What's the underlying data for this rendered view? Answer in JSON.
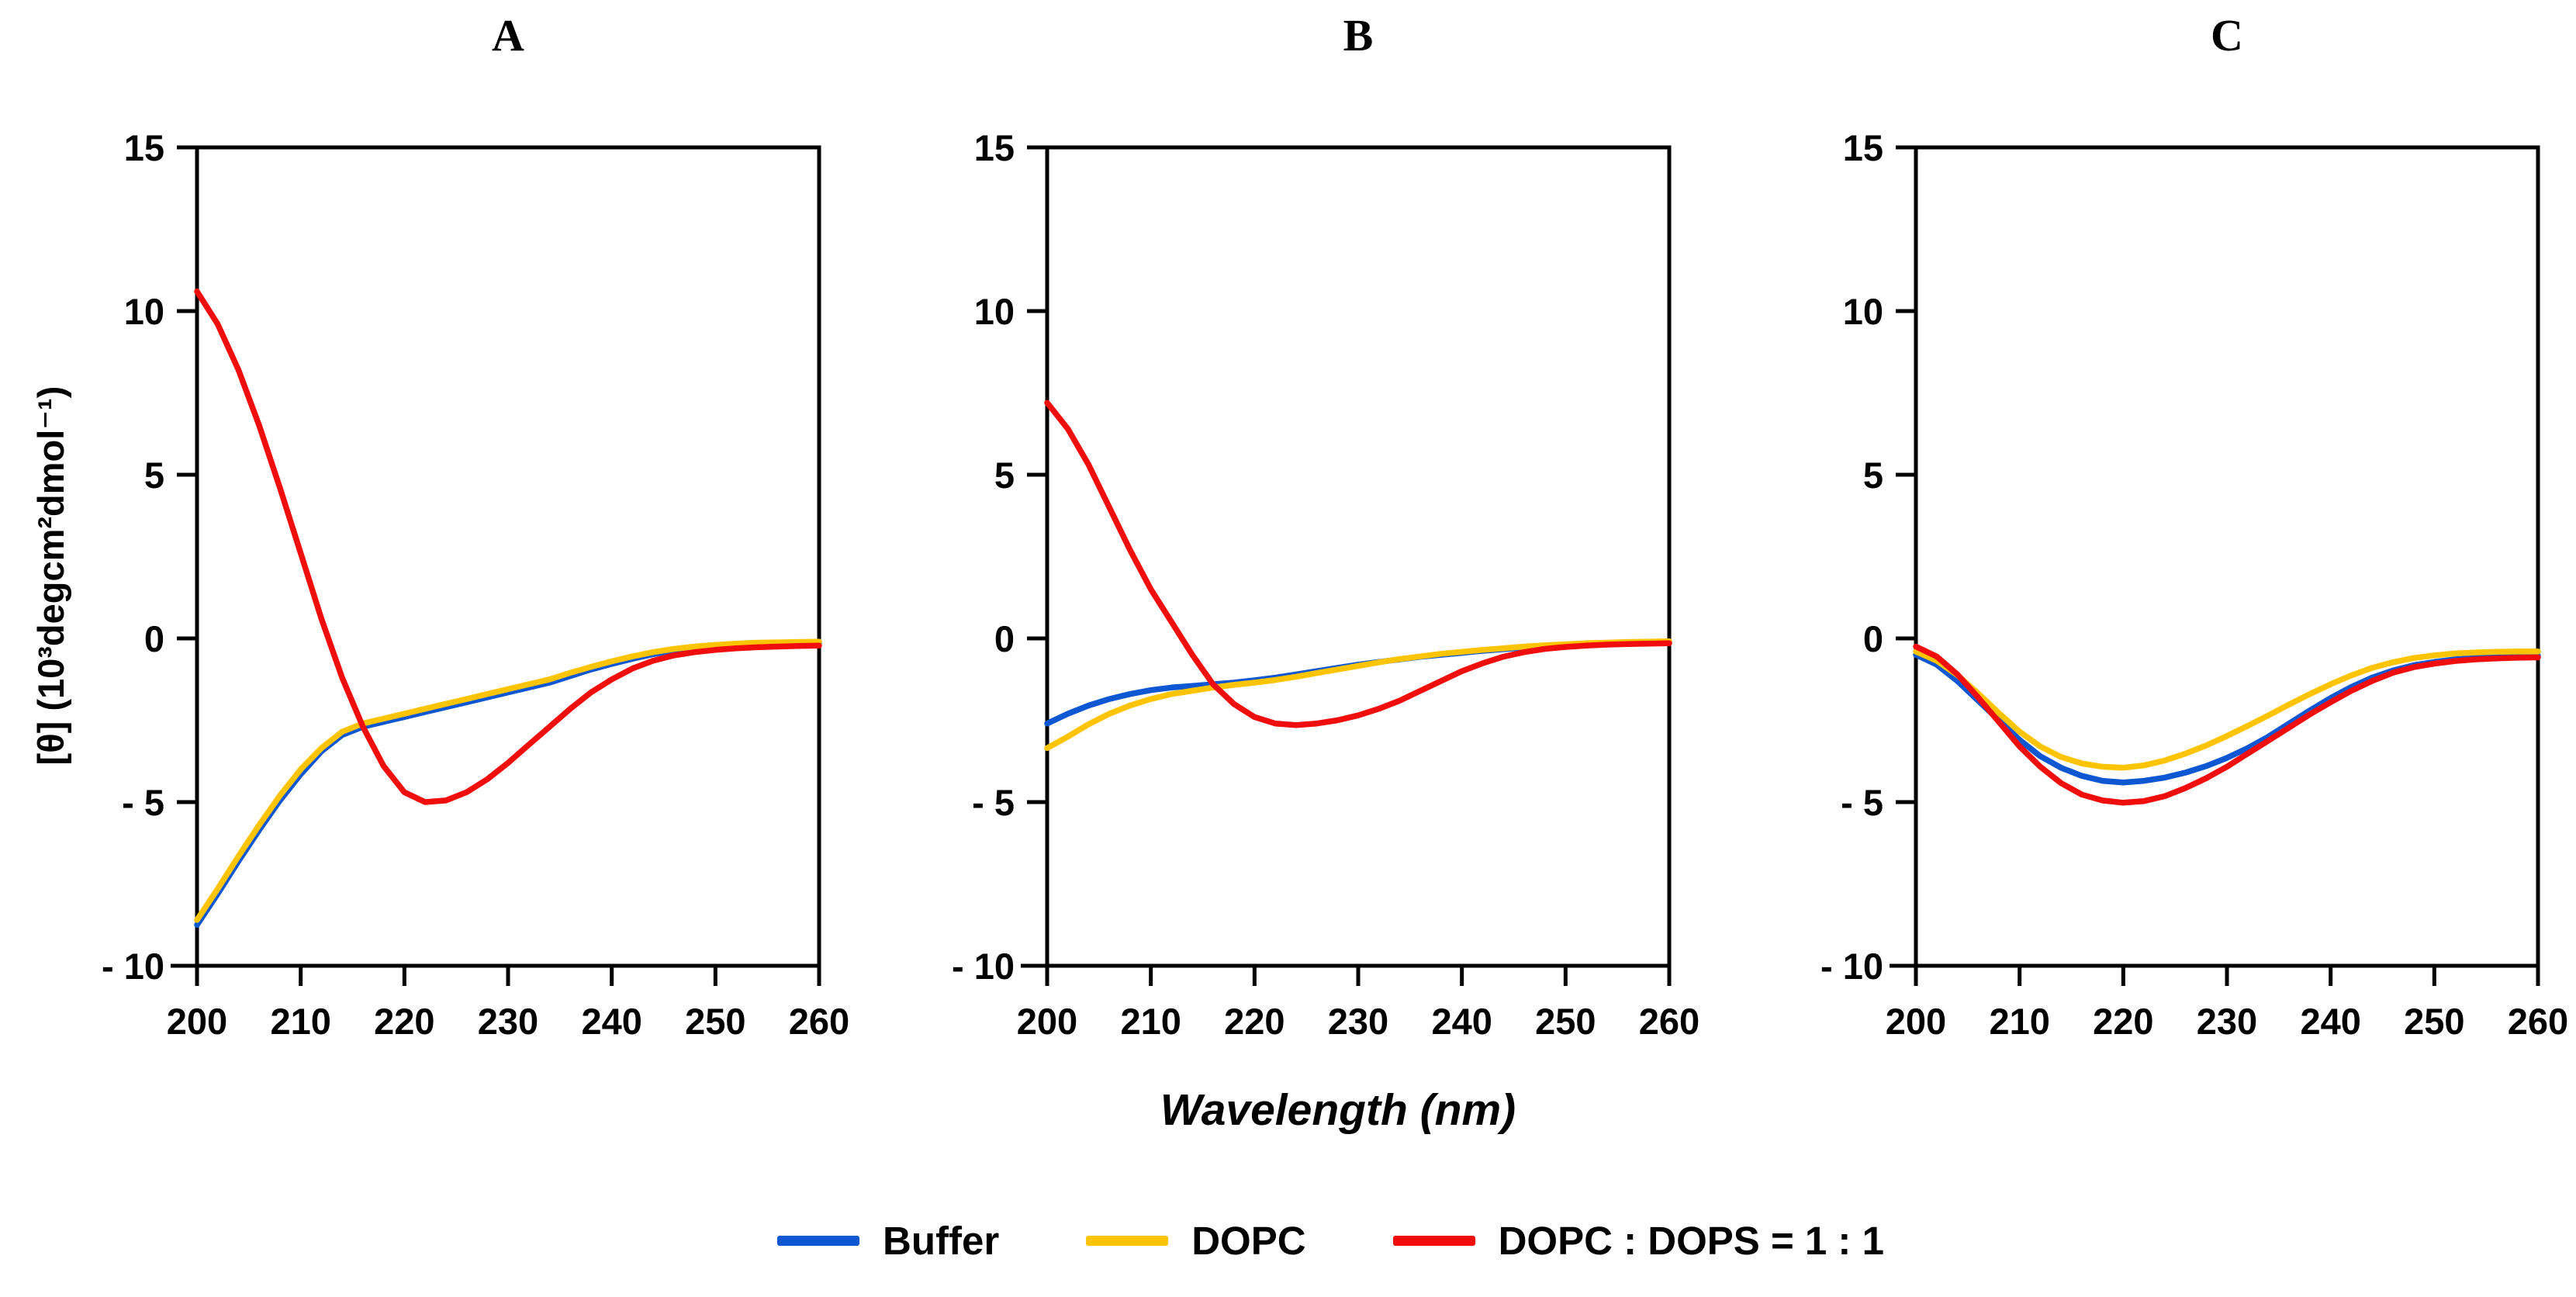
{
  "figure": {
    "background": "#ffffff",
    "panel_titles": [
      "A",
      "B",
      "C"
    ]
  },
  "colors": {
    "Buffer": "#0d57d2",
    "DOPC": "#ffc400",
    "DOPC : DOPS = 1 : 1": "#f20d0d",
    "axis": "#000000"
  },
  "legend": {
    "position": "bottom",
    "items": [
      {
        "label": "Buffer",
        "color": "#0d57d2"
      },
      {
        "label": "DOPC",
        "color": "#ffc400"
      },
      {
        "label": "DOPC : DOPS = 1 : 1",
        "color": "#f20d0d"
      }
    ]
  },
  "chart_data": {
    "type": "line",
    "x_label": "Wavelength (nm)",
    "y_label": "[θ] (10³degcm²dmol⁻¹)",
    "xlim": [
      200,
      260
    ],
    "ylim": [
      -10,
      15
    ],
    "x_ticks": [
      200,
      210,
      220,
      230,
      240,
      250,
      260
    ],
    "y_ticks": [
      15,
      10,
      5,
      0,
      -5,
      -10
    ],
    "y_tick_labels": [
      "15",
      "10",
      "5",
      "0",
      "- 5",
      "- 10"
    ],
    "grid": false,
    "x": [
      200,
      202,
      204,
      206,
      208,
      210,
      212,
      214,
      216,
      218,
      220,
      222,
      224,
      226,
      228,
      230,
      232,
      234,
      236,
      238,
      240,
      242,
      244,
      246,
      248,
      250,
      252,
      254,
      256,
      258,
      260
    ],
    "panels": [
      {
        "label": "A",
        "series": [
          {
            "name": "Buffer",
            "values": [
              -8.75,
              -7.8,
              -6.8,
              -5.85,
              -4.95,
              -4.15,
              -3.45,
              -2.95,
              -2.7,
              -2.55,
              -2.4,
              -2.25,
              -2.1,
              -1.95,
              -1.8,
              -1.65,
              -1.5,
              -1.35,
              -1.15,
              -0.95,
              -0.78,
              -0.62,
              -0.48,
              -0.38,
              -0.3,
              -0.24,
              -0.2,
              -0.17,
              -0.15,
              -0.14,
              -0.13
            ]
          },
          {
            "name": "DOPC",
            "values": [
              -8.6,
              -7.65,
              -6.65,
              -5.7,
              -4.8,
              -4.0,
              -3.35,
              -2.85,
              -2.6,
              -2.45,
              -2.3,
              -2.15,
              -2.0,
              -1.85,
              -1.7,
              -1.55,
              -1.4,
              -1.25,
              -1.05,
              -0.87,
              -0.7,
              -0.55,
              -0.42,
              -0.32,
              -0.25,
              -0.2,
              -0.16,
              -0.13,
              -0.12,
              -0.11,
              -0.1
            ]
          },
          {
            "name": "DOPC : DOPS = 1 : 1",
            "values": [
              10.6,
              9.6,
              8.2,
              6.5,
              4.6,
              2.6,
              0.6,
              -1.2,
              -2.7,
              -3.9,
              -4.7,
              -5.0,
              -4.95,
              -4.7,
              -4.3,
              -3.8,
              -3.25,
              -2.7,
              -2.15,
              -1.65,
              -1.25,
              -0.92,
              -0.68,
              -0.52,
              -0.42,
              -0.35,
              -0.3,
              -0.27,
              -0.25,
              -0.23,
              -0.22
            ]
          }
        ]
      },
      {
        "label": "B",
        "series": [
          {
            "name": "Buffer",
            "values": [
              -2.6,
              -2.3,
              -2.05,
              -1.85,
              -1.7,
              -1.58,
              -1.5,
              -1.45,
              -1.4,
              -1.35,
              -1.28,
              -1.2,
              -1.1,
              -1.0,
              -0.9,
              -0.8,
              -0.72,
              -0.64,
              -0.56,
              -0.5,
              -0.44,
              -0.38,
              -0.33,
              -0.28,
              -0.24,
              -0.2,
              -0.17,
              -0.15,
              -0.13,
              -0.12,
              -0.1
            ]
          },
          {
            "name": "DOPC",
            "values": [
              -3.35,
              -3.0,
              -2.62,
              -2.3,
              -2.05,
              -1.85,
              -1.7,
              -1.6,
              -1.5,
              -1.42,
              -1.35,
              -1.27,
              -1.17,
              -1.06,
              -0.95,
              -0.84,
              -0.73,
              -0.63,
              -0.55,
              -0.47,
              -0.41,
              -0.35,
              -0.3,
              -0.25,
              -0.21,
              -0.18,
              -0.15,
              -0.13,
              -0.11,
              -0.1,
              -0.09
            ]
          },
          {
            "name": "DOPC : DOPS = 1 : 1",
            "values": [
              7.2,
              6.4,
              5.3,
              4.0,
              2.7,
              1.5,
              0.5,
              -0.5,
              -1.4,
              -2.0,
              -2.4,
              -2.6,
              -2.65,
              -2.6,
              -2.5,
              -2.35,
              -2.15,
              -1.9,
              -1.6,
              -1.3,
              -1.0,
              -0.76,
              -0.56,
              -0.42,
              -0.32,
              -0.26,
              -0.22,
              -0.19,
              -0.17,
              -0.16,
              -0.15
            ]
          }
        ]
      },
      {
        "label": "C",
        "series": [
          {
            "name": "Buffer",
            "values": [
              -0.5,
              -0.8,
              -1.3,
              -1.9,
              -2.5,
              -3.1,
              -3.6,
              -3.95,
              -4.2,
              -4.35,
              -4.4,
              -4.35,
              -4.25,
              -4.1,
              -3.9,
              -3.65,
              -3.35,
              -3.0,
              -2.6,
              -2.2,
              -1.82,
              -1.48,
              -1.2,
              -0.98,
              -0.82,
              -0.72,
              -0.64,
              -0.59,
              -0.56,
              -0.54,
              -0.53
            ]
          },
          {
            "name": "DOPC",
            "values": [
              -0.4,
              -0.68,
              -1.12,
              -1.68,
              -2.28,
              -2.85,
              -3.3,
              -3.62,
              -3.82,
              -3.92,
              -3.95,
              -3.88,
              -3.73,
              -3.52,
              -3.27,
              -2.98,
              -2.67,
              -2.35,
              -2.02,
              -1.7,
              -1.4,
              -1.13,
              -0.9,
              -0.73,
              -0.6,
              -0.52,
              -0.46,
              -0.43,
              -0.41,
              -0.4,
              -0.4
            ]
          },
          {
            "name": "DOPC : DOPS = 1 : 1",
            "values": [
              -0.25,
              -0.55,
              -1.1,
              -1.8,
              -2.55,
              -3.3,
              -3.92,
              -4.42,
              -4.77,
              -4.95,
              -5.02,
              -4.97,
              -4.82,
              -4.57,
              -4.27,
              -3.92,
              -3.52,
              -3.12,
              -2.72,
              -2.32,
              -1.95,
              -1.6,
              -1.3,
              -1.05,
              -0.88,
              -0.77,
              -0.69,
              -0.64,
              -0.61,
              -0.59,
              -0.58
            ]
          }
        ]
      }
    ]
  }
}
